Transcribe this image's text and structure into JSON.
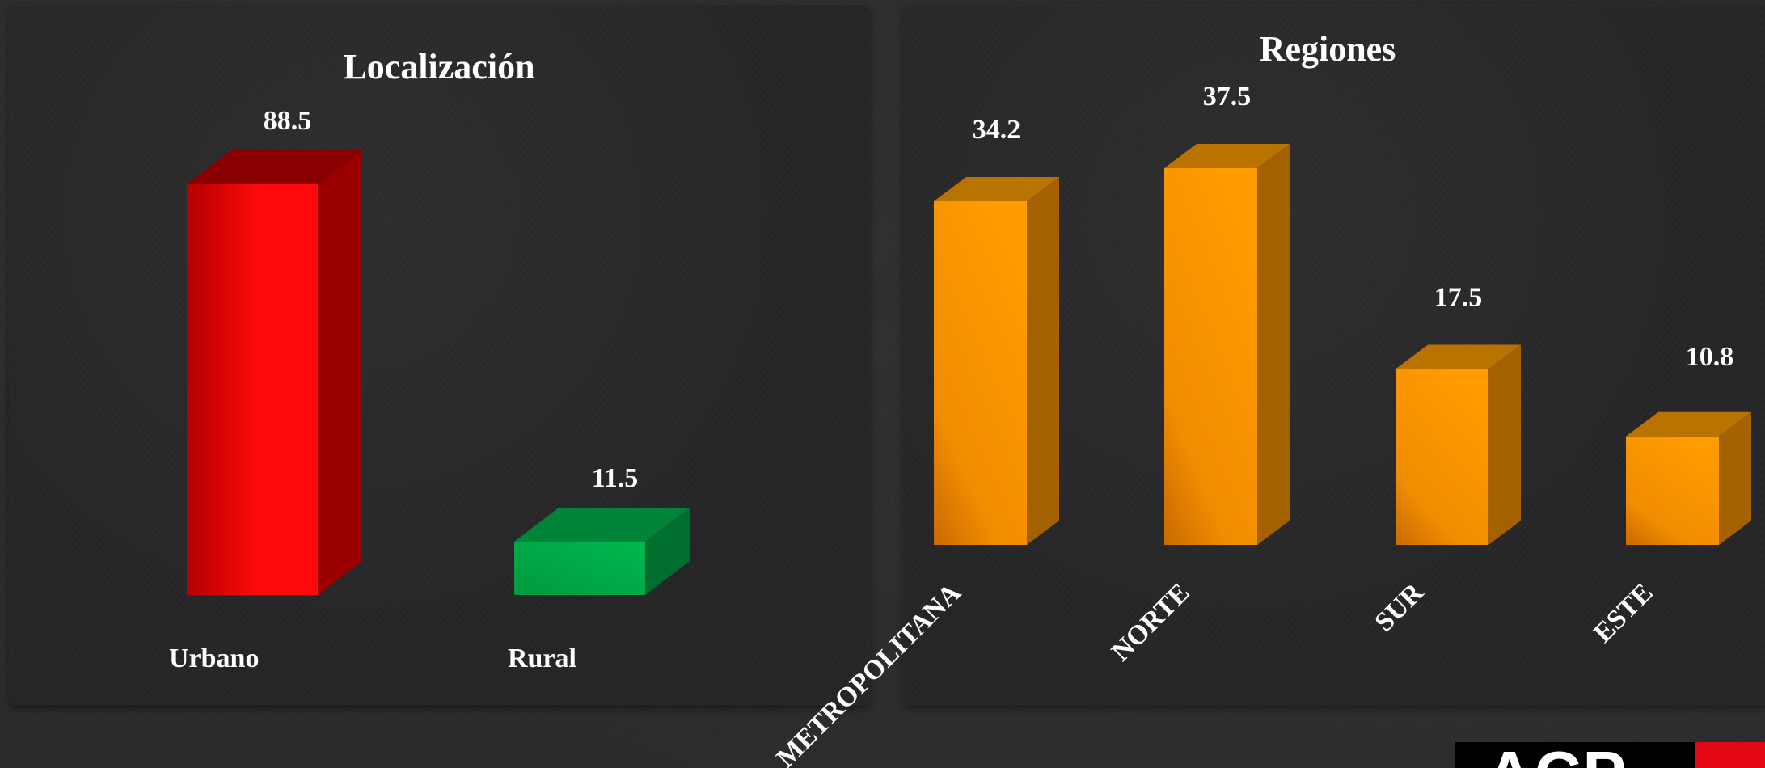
{
  "brand": {
    "logo_text": "ACP",
    "colors": {
      "logo_black": "#000000",
      "logo_red": "#e30613"
    }
  },
  "chart_data": [
    {
      "type": "bar",
      "title": "Localización",
      "categories": [
        "Urbano",
        "Rural"
      ],
      "values": [
        88.5,
        11.5
      ],
      "value_labels": [
        "88.5",
        "11.5"
      ],
      "ylim": [
        0,
        100
      ],
      "grid": false,
      "legend": "none",
      "style": "3d",
      "colors": [
        {
          "front_light": "#ff0a0a",
          "front_dark": "#b30000",
          "side": "#9b0000",
          "top": "#8a0000"
        },
        {
          "front_light": "#00b84e",
          "front_dark": "#009a3e",
          "side": "#006f2e",
          "top": "#00843a"
        }
      ]
    },
    {
      "type": "bar",
      "title": "Regiones",
      "categories": [
        "METROPOLITANA",
        "NORTE",
        "SUR",
        "ESTE"
      ],
      "values": [
        34.2,
        37.5,
        17.5,
        10.8
      ],
      "value_labels": [
        "34.2",
        "37.5",
        "17.5",
        "10.8"
      ],
      "ylim": [
        0,
        40
      ],
      "grid": false,
      "legend": "none",
      "style": "3d",
      "colors": [
        {
          "front_light": "#ffa000",
          "front_dark": "#c86a00",
          "side": "#a36100",
          "top": "#b97300"
        }
      ]
    }
  ]
}
